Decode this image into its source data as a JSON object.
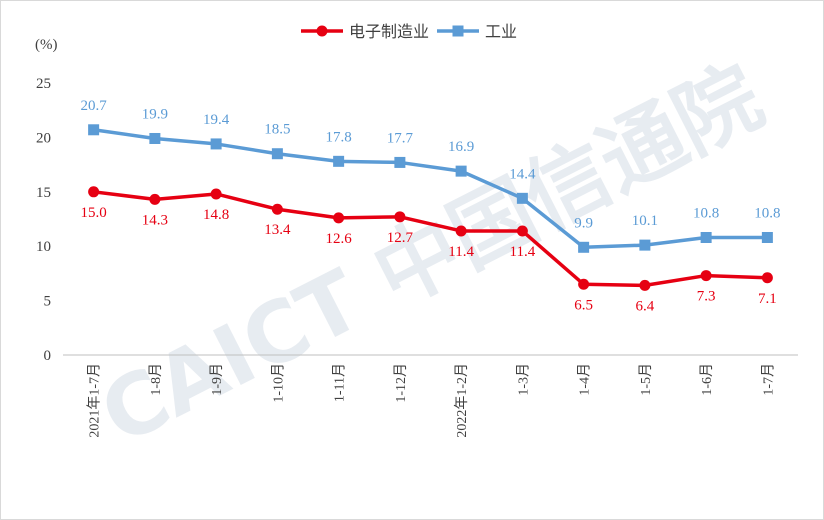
{
  "chart_data": {
    "type": "line",
    "unit_label": "(%)",
    "watermark": "CAICT 中国信通院",
    "categories": [
      "2021年1-7月",
      "1-8月",
      "1-9月",
      "1-10月",
      "1-11月",
      "1-12月",
      "2022年1-2月",
      "1-3月",
      "1-4月",
      "1-5月",
      "1-6月",
      "1-7月"
    ],
    "y_ticks": [
      "0",
      "5",
      "10",
      "15",
      "20",
      "25"
    ],
    "ylim": [
      0,
      25
    ],
    "grid": false,
    "legend_position": "top",
    "series": [
      {
        "name": "电子制造业",
        "color": "#e60012",
        "marker": "circle",
        "values": [
          15.0,
          14.3,
          14.8,
          13.4,
          12.6,
          12.7,
          11.4,
          11.4,
          6.5,
          6.4,
          7.3,
          7.1
        ],
        "labels": [
          "15.0",
          "14.3",
          "14.8",
          "13.4",
          "12.6",
          "12.7",
          "11.4",
          "11.4",
          "6.5",
          "6.4",
          "7.3",
          "7.1"
        ]
      },
      {
        "name": "工业",
        "color": "#5b9bd5",
        "marker": "square",
        "values": [
          20.7,
          19.9,
          19.4,
          18.5,
          17.8,
          17.7,
          16.9,
          14.4,
          9.9,
          10.1,
          10.8,
          10.8
        ],
        "labels": [
          "20.7",
          "19.9",
          "19.4",
          "18.5",
          "17.8",
          "17.7",
          "16.9",
          "14.4",
          "9.9",
          "10.1",
          "10.8",
          "10.8"
        ]
      }
    ]
  }
}
